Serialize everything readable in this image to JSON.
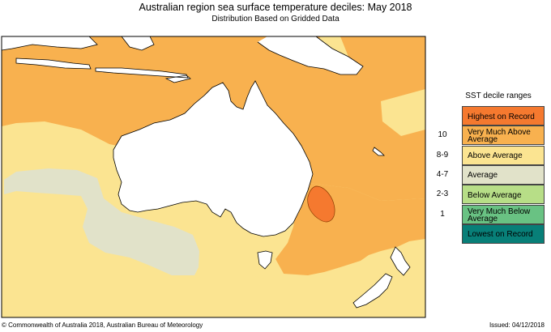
{
  "title": "Australian region sea surface temperature deciles:  May 2018",
  "subtitle": "Distribution Based on Gridded Data",
  "legend": {
    "title": "SST decile ranges",
    "items": [
      {
        "value": "",
        "label": "Highest on Record",
        "color": "#f5792f"
      },
      {
        "value": "10",
        "label": "Very Much Above Average",
        "color": "#f8b14f"
      },
      {
        "value": "8-9",
        "label": "Above Average",
        "color": "#fbe491"
      },
      {
        "value": "4-7",
        "label": "Average",
        "color": "#e1e2c9"
      },
      {
        "value": "2-3",
        "label": "Below Average",
        "color": "#b7de87"
      },
      {
        "value": "1",
        "label": "Very Much Below Average",
        "color": "#69c283"
      },
      {
        "value": "",
        "label": "Lowest on Record",
        "color": "#087f78"
      }
    ]
  },
  "colors": {
    "land": "#ffffff",
    "coastline": "#000000",
    "border": "#000000"
  },
  "footer": {
    "copyright": "© Commonwealth of Australia 2018, Australian Bureau of Meteorology",
    "issued": "Issued: 04/12/2018"
  }
}
